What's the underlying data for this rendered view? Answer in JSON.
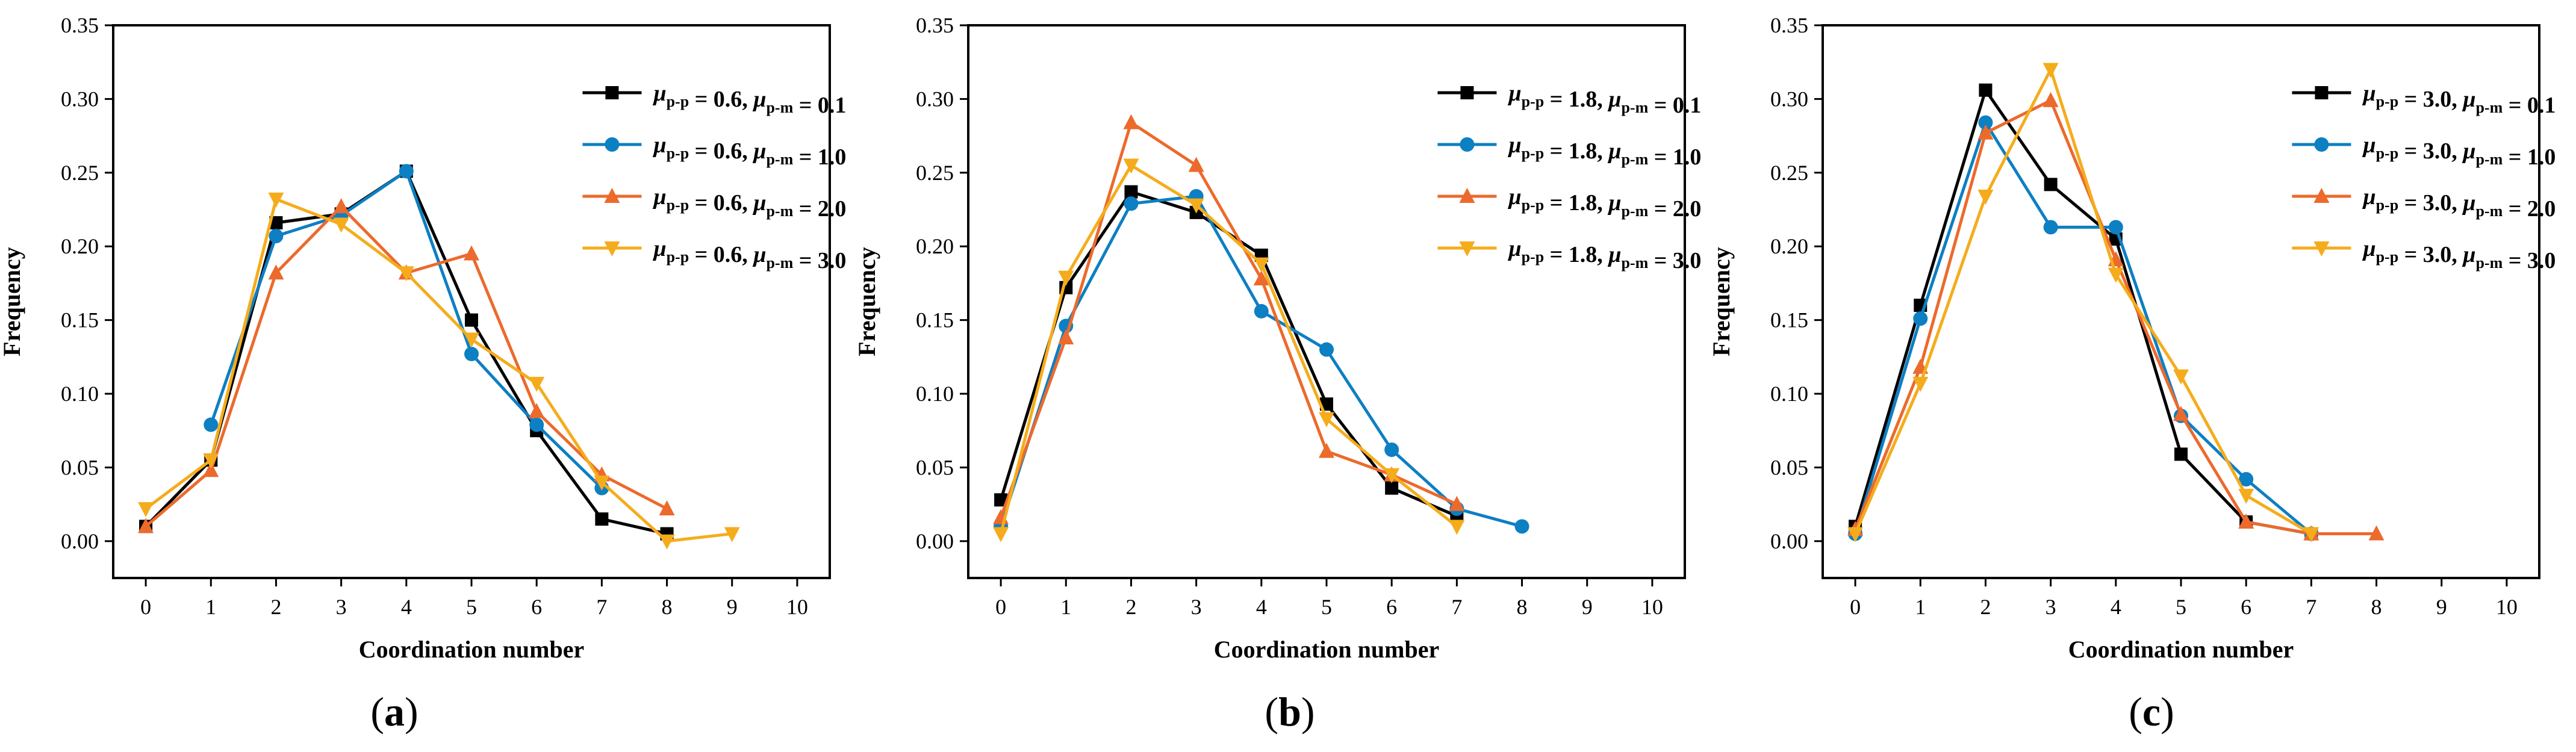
{
  "figure": {
    "colors": {
      "black": "#000000",
      "blue": "#0d7fc3",
      "orange": "#ec6a2c",
      "yellow": "#f5ac1c"
    }
  },
  "chart_data": [
    {
      "type": "line",
      "panel_label": {
        "open": "(",
        "letter": "a",
        "close": ")"
      },
      "xlabel": "Coordination number",
      "ylabel": "Frequency",
      "xlim": [
        -0.5,
        10.5
      ],
      "ylim": [
        -0.025,
        0.35
      ],
      "xticks": [
        "0",
        "1",
        "2",
        "3",
        "4",
        "5",
        "6",
        "7",
        "8",
        "9",
        "10"
      ],
      "yticks": [
        "0.00",
        "0.05",
        "0.10",
        "0.15",
        "0.20",
        "0.25",
        "0.30",
        "0.35"
      ],
      "legend_position": "top-right",
      "series": [
        {
          "pp": "0.6",
          "pm": "0.1",
          "color": "#000000",
          "marker": "square",
          "x": [
            0,
            1,
            2,
            3,
            4,
            5,
            6,
            7,
            8
          ],
          "y": [
            0.01,
            0.055,
            0.216,
            0.222,
            0.251,
            0.15,
            0.075,
            0.015,
            0.005
          ]
        },
        {
          "pp": "0.6",
          "pm": "1.0",
          "color": "#0d7fc3",
          "marker": "circle",
          "x": [
            1,
            2,
            3,
            4,
            5,
            6,
            7
          ],
          "y": [
            0.079,
            0.207,
            0.221,
            0.251,
            0.127,
            0.079,
            0.036
          ]
        },
        {
          "pp": "0.6",
          "pm": "2.0",
          "color": "#ec6a2c",
          "marker": "triangle-up",
          "x": [
            0,
            1,
            2,
            3,
            4,
            5,
            6,
            7,
            8
          ],
          "y": [
            0.01,
            0.048,
            0.182,
            0.227,
            0.182,
            0.195,
            0.088,
            0.045,
            0.022
          ]
        },
        {
          "pp": "0.6",
          "pm": "3.0",
          "color": "#f5ac1c",
          "marker": "triangle-down",
          "x": [
            0,
            1,
            2,
            3,
            4,
            5,
            6,
            7,
            8,
            9
          ],
          "y": [
            0.022,
            0.055,
            0.232,
            0.215,
            0.182,
            0.137,
            0.107,
            0.04,
            0.0,
            0.005
          ]
        }
      ]
    },
    {
      "type": "line",
      "panel_label": {
        "open": "(",
        "letter": "b",
        "close": ")"
      },
      "xlabel": "Coordination number",
      "ylabel": "Frequency",
      "xlim": [
        -0.5,
        10.5
      ],
      "ylim": [
        -0.025,
        0.35
      ],
      "xticks": [
        "0",
        "1",
        "2",
        "3",
        "4",
        "5",
        "6",
        "7",
        "8",
        "9",
        "10"
      ],
      "yticks": [
        "0.00",
        "0.05",
        "0.10",
        "0.15",
        "0.20",
        "0.25",
        "0.30",
        "0.35"
      ],
      "legend_position": "top-right",
      "series": [
        {
          "pp": "1.8",
          "pm": "0.1",
          "color": "#000000",
          "marker": "square",
          "x": [
            0,
            1,
            2,
            3,
            4,
            5,
            6,
            7
          ],
          "y": [
            0.028,
            0.172,
            0.237,
            0.223,
            0.194,
            0.093,
            0.036,
            0.017
          ]
        },
        {
          "pp": "1.8",
          "pm": "1.0",
          "color": "#0d7fc3",
          "marker": "circle",
          "x": [
            0,
            1,
            2,
            3,
            4,
            5,
            6,
            7,
            8
          ],
          "y": [
            0.01,
            0.146,
            0.229,
            0.234,
            0.156,
            0.13,
            0.062,
            0.022,
            0.01
          ]
        },
        {
          "pp": "1.8",
          "pm": "2.0",
          "color": "#ec6a2c",
          "marker": "triangle-up",
          "x": [
            0,
            1,
            2,
            3,
            4,
            5,
            6,
            7
          ],
          "y": [
            0.016,
            0.138,
            0.284,
            0.255,
            0.178,
            0.061,
            0.045,
            0.025
          ]
        },
        {
          "pp": "1.8",
          "pm": "3.0",
          "color": "#f5ac1c",
          "marker": "triangle-down",
          "x": [
            0,
            1,
            2,
            3,
            4,
            5,
            6,
            7
          ],
          "y": [
            0.005,
            0.179,
            0.255,
            0.228,
            0.188,
            0.083,
            0.045,
            0.01
          ]
        }
      ]
    },
    {
      "type": "line",
      "panel_label": {
        "open": "(",
        "letter": "c",
        "close": ")"
      },
      "xlabel": "Coordination number",
      "ylabel": "Frequency",
      "xlim": [
        -0.5,
        10.5
      ],
      "ylim": [
        -0.025,
        0.35
      ],
      "xticks": [
        "0",
        "1",
        "2",
        "3",
        "4",
        "5",
        "6",
        "7",
        "8",
        "9",
        "10"
      ],
      "yticks": [
        "0.00",
        "0.05",
        "0.10",
        "0.15",
        "0.20",
        "0.25",
        "0.30",
        "0.35"
      ],
      "legend_position": "top-right",
      "series": [
        {
          "pp": "3.0",
          "pm": "0.1",
          "color": "#000000",
          "marker": "square",
          "x": [
            0,
            1,
            2,
            3,
            4,
            5,
            6,
            7
          ],
          "y": [
            0.01,
            0.16,
            0.306,
            0.242,
            0.205,
            0.059,
            0.013,
            0.005
          ]
        },
        {
          "pp": "3.0",
          "pm": "1.0",
          "color": "#0d7fc3",
          "marker": "circle",
          "x": [
            0,
            1,
            2,
            3,
            4,
            5,
            6,
            7
          ],
          "y": [
            0.005,
            0.151,
            0.284,
            0.213,
            0.213,
            0.085,
            0.042,
            0.005
          ]
        },
        {
          "pp": "3.0",
          "pm": "2.0",
          "color": "#ec6a2c",
          "marker": "triangle-up",
          "x": [
            0,
            1,
            2,
            3,
            4,
            5,
            6,
            7,
            8
          ],
          "y": [
            0.008,
            0.118,
            0.277,
            0.299,
            0.191,
            0.086,
            0.013,
            0.005,
            0.005
          ]
        },
        {
          "pp": "3.0",
          "pm": "3.0",
          "color": "#f5ac1c",
          "marker": "triangle-down",
          "x": [
            0,
            1,
            2,
            3,
            4,
            5,
            6,
            7
          ],
          "y": [
            0.005,
            0.107,
            0.234,
            0.32,
            0.181,
            0.112,
            0.031,
            0.005
          ]
        }
      ]
    }
  ]
}
